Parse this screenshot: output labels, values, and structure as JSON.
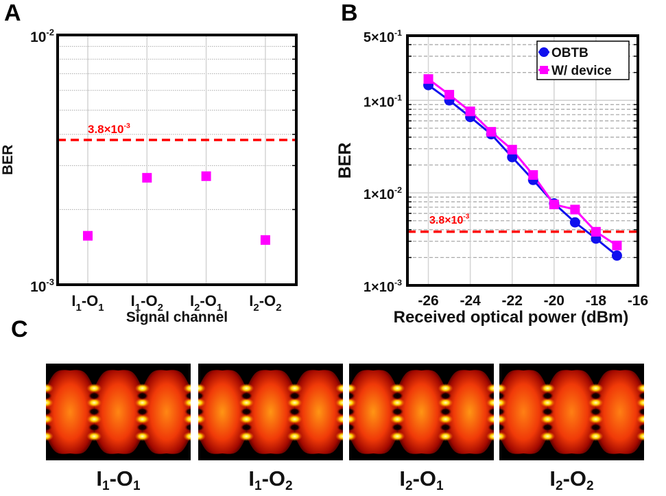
{
  "panels": {
    "a": {
      "letter": "A"
    },
    "b": {
      "letter": "B"
    },
    "c": {
      "letter": "C"
    }
  },
  "chart_data": [
    {
      "id": "A",
      "type": "scatter",
      "title": "",
      "xlabel": "Signal channel",
      "ylabel": "BER",
      "yscale": "log",
      "ylim": [
        0.001,
        0.01
      ],
      "yticks": [
        {
          "value": 0.01,
          "base": "10",
          "exp": "-2"
        },
        {
          "value": 0.001,
          "base": "10",
          "exp": "-3"
        }
      ],
      "categories": [
        {
          "main": "I",
          "sub1": "1",
          "mid": "-O",
          "sub2": "1"
        },
        {
          "main": "I",
          "sub1": "1",
          "mid": "-O",
          "sub2": "2"
        },
        {
          "main": "I",
          "sub1": "2",
          "mid": "-O",
          "sub2": "1"
        },
        {
          "main": "I",
          "sub1": "2",
          "mid": "-O",
          "sub2": "2"
        }
      ],
      "series": [
        {
          "name": "BER",
          "color": "#ff00ff",
          "marker": "square",
          "values": [
            0.00157,
            0.00268,
            0.00272,
            0.00151
          ]
        }
      ],
      "threshold": {
        "value": 0.0038,
        "label_base": "3.8×10",
        "label_exp": "-3",
        "color": "#ff0000"
      },
      "grid": true
    },
    {
      "id": "B",
      "type": "line",
      "title": "",
      "xlabel": "Received optical power (dBm)",
      "ylabel": "BER",
      "yscale": "log",
      "xlim": [
        -27,
        -16
      ],
      "ylim": [
        0.001,
        0.5
      ],
      "xticks": [
        -26,
        -24,
        -22,
        -20,
        -18,
        -16
      ],
      "yticks": [
        {
          "value": 0.5,
          "base": "5×10",
          "exp": "-1"
        },
        {
          "value": 0.1,
          "base": "1×10",
          "exp": "-1"
        },
        {
          "value": 0.01,
          "base": "1×10",
          "exp": "-2"
        },
        {
          "value": 0.001,
          "base": "1×10",
          "exp": "-3"
        }
      ],
      "x": [
        -26,
        -25,
        -24,
        -23,
        -22,
        -21,
        -20,
        -19,
        -18,
        -17
      ],
      "series": [
        {
          "name": "OBTB",
          "color": "#1010ee",
          "marker": "circle",
          "values": [
            0.146,
            0.1,
            0.066,
            0.043,
            0.0243,
            0.0138,
            0.0077,
            0.0048,
            0.0032,
            0.0021
          ]
        },
        {
          "name": "W/ device",
          "color": "#ff00ff",
          "marker": "square",
          "values": [
            0.17,
            0.115,
            0.076,
            0.0457,
            0.0293,
            0.0156,
            0.0075,
            0.0066,
            0.0038,
            0.0027
          ]
        }
      ],
      "threshold": {
        "value": 0.0038,
        "label_base": "3.8×10",
        "label_exp": "-3",
        "color": "#ff0000"
      },
      "legend": "top-right",
      "grid": true
    }
  ],
  "eye_diagrams": [
    {
      "main": "I",
      "sub1": "1",
      "mid": "-O",
      "sub2": "1",
      "brightness": 0.9
    },
    {
      "main": "I",
      "sub1": "1",
      "mid": "-O",
      "sub2": "2",
      "brightness": 1.0
    },
    {
      "main": "I",
      "sub1": "2",
      "mid": "-O",
      "sub2": "1",
      "brightness": 1.0
    },
    {
      "main": "I",
      "sub1": "2",
      "mid": "-O",
      "sub2": "2",
      "brightness": 0.85
    }
  ]
}
